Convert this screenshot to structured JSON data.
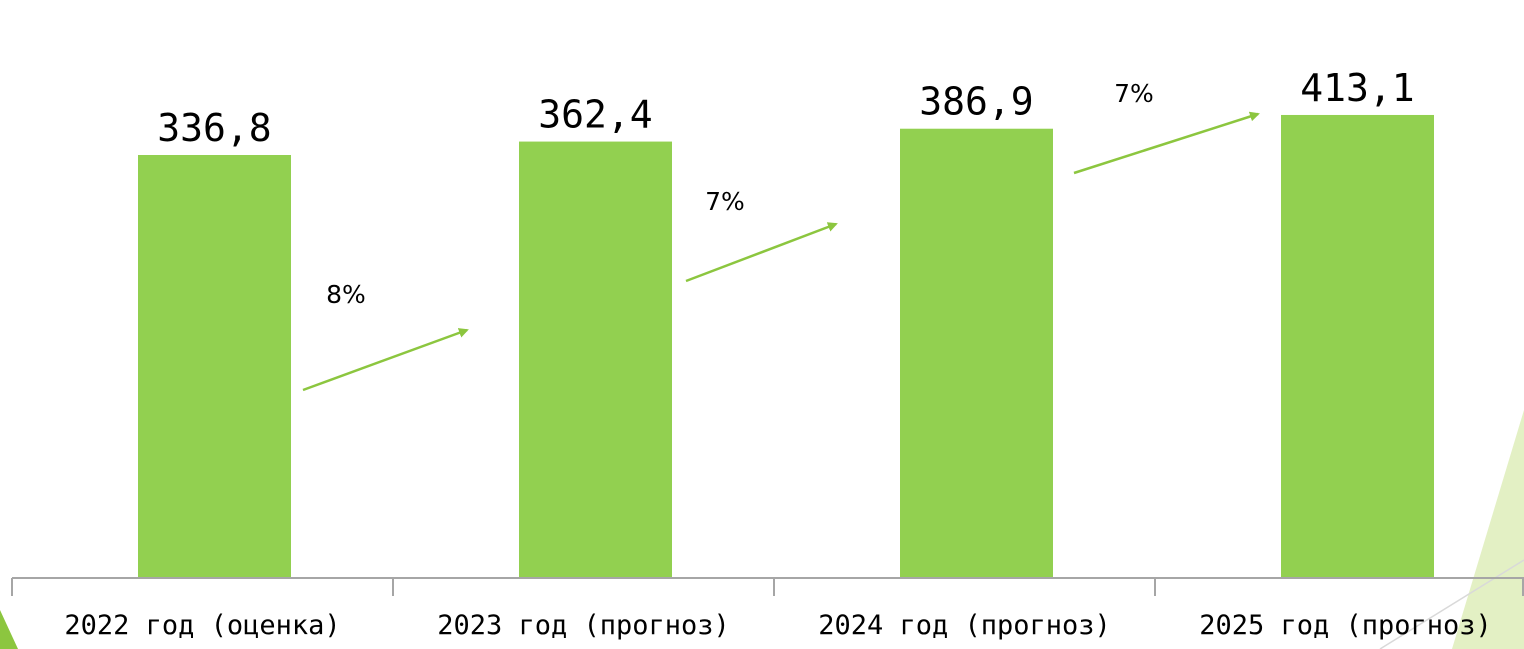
{
  "chart_data": {
    "type": "bar",
    "categories": [
      "2022 год (оценка)",
      "2023 год (прогноз)",
      "2024 год (прогноз)",
      "2025 год (прогноз)"
    ],
    "values": [
      336.8,
      362.4,
      386.9,
      413.1
    ],
    "value_labels": [
      "336,8",
      "362,4",
      "386,9",
      "413,1"
    ],
    "growth_labels": [
      "8%",
      "7%",
      "7%"
    ],
    "title": "",
    "xlabel": "",
    "ylabel": "",
    "grid": false,
    "legend": "none",
    "colors": {
      "bar": "#92d050",
      "arrow": "#8cc63f",
      "axis": "#a6a6a6",
      "decoration": "#c5e08a"
    }
  }
}
